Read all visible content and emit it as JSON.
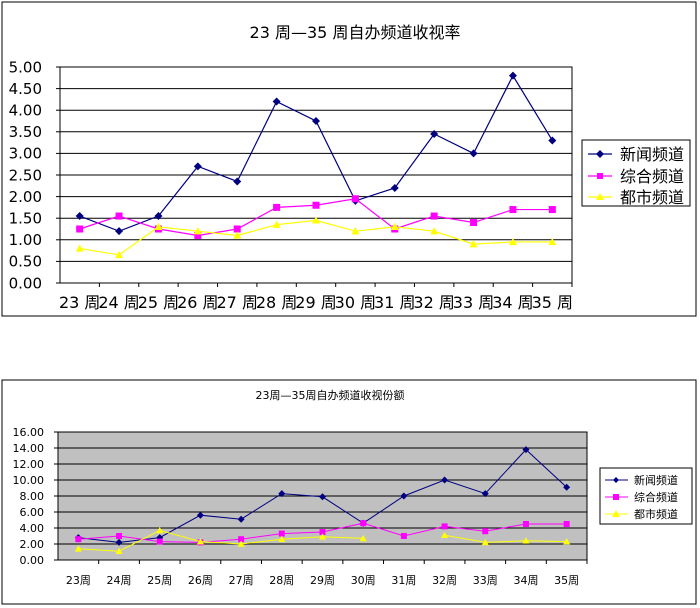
{
  "chart_data": [
    {
      "type": "line",
      "title": "23 周—35 周自办频道收视率",
      "xlabel": "",
      "ylabel": "",
      "categories": [
        "23 周",
        "24 周",
        "25 周",
        "26 周",
        "27 周",
        "28 周",
        "29 周",
        "30 周",
        "31 周",
        "32 周",
        "33 周",
        "34 周",
        "35 周"
      ],
      "y_ticks": [
        "0.00",
        "0.50",
        "1.00",
        "1.50",
        "2.00",
        "2.50",
        "3.00",
        "3.50",
        "4.00",
        "4.50",
        "5.00"
      ],
      "ylim": [
        0,
        5
      ],
      "grid": "horizontal",
      "legend": "right",
      "series": [
        {
          "name": "新闻频道",
          "color": "#000080",
          "marker": "diamond",
          "values": [
            1.55,
            1.2,
            1.55,
            2.7,
            2.35,
            4.2,
            3.75,
            1.9,
            2.2,
            3.45,
            3.0,
            4.8,
            3.3
          ]
        },
        {
          "name": "综合频道",
          "color": "#ff00ff",
          "marker": "square",
          "values": [
            1.25,
            1.55,
            1.25,
            1.1,
            1.25,
            1.75,
            1.8,
            1.95,
            1.25,
            1.55,
            1.4,
            1.7,
            1.7
          ]
        },
        {
          "name": "都市频道",
          "color": "#ffff00",
          "marker": "triangle",
          "values": [
            0.8,
            0.65,
            1.3,
            1.2,
            1.1,
            1.35,
            1.45,
            1.2,
            1.3,
            1.2,
            0.9,
            0.95,
            0.95
          ]
        }
      ]
    },
    {
      "type": "line",
      "title": "23周—35周自办频道收视份额",
      "xlabel": "",
      "ylabel": "",
      "categories": [
        "23周",
        "24周",
        "25周",
        "26周",
        "27周",
        "28周",
        "29周",
        "30周",
        "31周",
        "32周",
        "33周",
        "34周",
        "35周"
      ],
      "y_ticks": [
        "0.00",
        "2.00",
        "4.00",
        "6.00",
        "8.00",
        "10.00",
        "12.00",
        "14.00",
        "16.00"
      ],
      "ylim": [
        0,
        16
      ],
      "grid": "horizontal",
      "legend": "right",
      "series": [
        {
          "name": "新闻频道",
          "color": "#000080",
          "marker": "diamond",
          "values": [
            2.8,
            2.2,
            2.8,
            5.6,
            5.1,
            8.3,
            7.9,
            4.6,
            8.0,
            10.0,
            8.3,
            13.8,
            9.1
          ]
        },
        {
          "name": "综合频道",
          "color": "#ff00ff",
          "marker": "square",
          "values": [
            2.6,
            3.0,
            2.3,
            2.2,
            2.6,
            3.3,
            3.5,
            4.6,
            3.0,
            4.2,
            3.6,
            4.5,
            4.5
          ]
        },
        {
          "name": "都市频道",
          "color": "#ffff00",
          "marker": "triangle",
          "values": [
            1.4,
            1.1,
            3.7,
            2.3,
            2.0,
            2.6,
            2.9,
            2.7,
            null,
            3.1,
            2.2,
            2.4,
            2.3
          ]
        }
      ]
    }
  ]
}
